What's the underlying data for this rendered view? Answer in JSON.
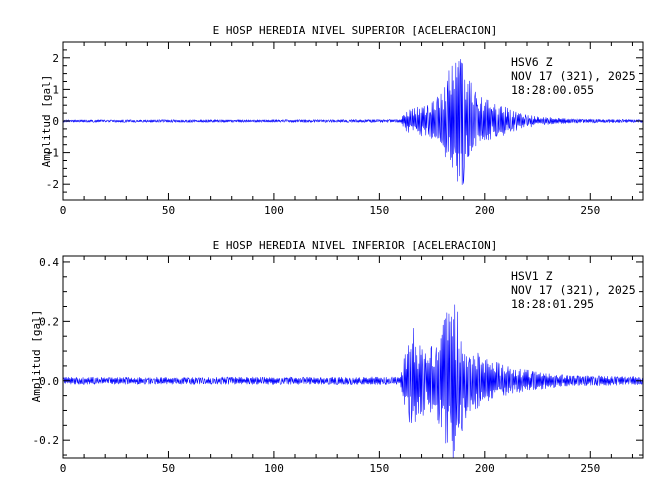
{
  "colors": {
    "trace": "#0000ff",
    "axes": "#000000",
    "background": "#ffffff"
  },
  "chart_data": [
    {
      "type": "line",
      "title": "E HOSP HEREDIA NIVEL SUPERIOR [ACELERACION]",
      "xlabel": "",
      "ylabel": "Amplitud [gal]",
      "xlim": [
        0,
        275
      ],
      "ylim": [
        -2.5,
        2.5
      ],
      "x_ticks": [
        0,
        50,
        100,
        150,
        200,
        250
      ],
      "y_ticks": [
        -2,
        -1,
        0,
        1,
        2
      ],
      "y_tick_labels": [
        "-2",
        "-1",
        "0",
        "1",
        "2"
      ],
      "station": {
        "code": "HSV6   Z",
        "date": "NOV 17 (321), 2025",
        "time": "18:28:00.055"
      },
      "series": [
        {
          "color": "#0000ff",
          "x_step": 0.25,
          "noise_amplitude": 0.04,
          "envelope": [
            [
              0,
              0.04
            ],
            [
              160,
              0.05
            ],
            [
              163,
              0.35
            ],
            [
              172,
              0.55
            ],
            [
              180,
              0.9
            ],
            [
              186,
              2.3
            ],
            [
              188,
              2.4
            ],
            [
              192,
              1.5
            ],
            [
              197,
              0.8
            ],
            [
              205,
              0.55
            ],
            [
              210,
              0.45
            ],
            [
              215,
              0.3
            ],
            [
              225,
              0.15
            ],
            [
              240,
              0.07
            ],
            [
              275,
              0.05
            ]
          ]
        }
      ]
    },
    {
      "type": "line",
      "title": "E HOSP HEREDIA NIVEL INFERIOR [ACELERACION]",
      "xlabel": "",
      "ylabel": "Amplitud [gal]",
      "xlim": [
        0,
        275
      ],
      "ylim": [
        -0.26,
        0.42
      ],
      "x_ticks": [
        0,
        50,
        100,
        150,
        200,
        250
      ],
      "y_ticks": [
        -0.2,
        0,
        0.2,
        0.4
      ],
      "y_tick_labels": [
        "-0.2",
        "0.0",
        "0.2",
        "0.4"
      ],
      "station": {
        "code": "HSV1   Z",
        "date": "NOV 17 (321), 2025",
        "time": "18:28:01.295"
      },
      "series": [
        {
          "color": "#0000ff",
          "x_step": 0.25,
          "noise_amplitude": 0.012,
          "envelope": [
            [
              0,
              0.012
            ],
            [
              160,
              0.013
            ],
            [
              163,
              0.12
            ],
            [
              166,
              0.18
            ],
            [
              172,
              0.1
            ],
            [
              178,
              0.14
            ],
            [
              181,
              0.21
            ],
            [
              185,
              0.3
            ],
            [
              188,
              0.2
            ],
            [
              192,
              0.12
            ],
            [
              200,
              0.08
            ],
            [
              210,
              0.05
            ],
            [
              225,
              0.03
            ],
            [
              240,
              0.018
            ],
            [
              275,
              0.014
            ]
          ]
        }
      ]
    }
  ]
}
